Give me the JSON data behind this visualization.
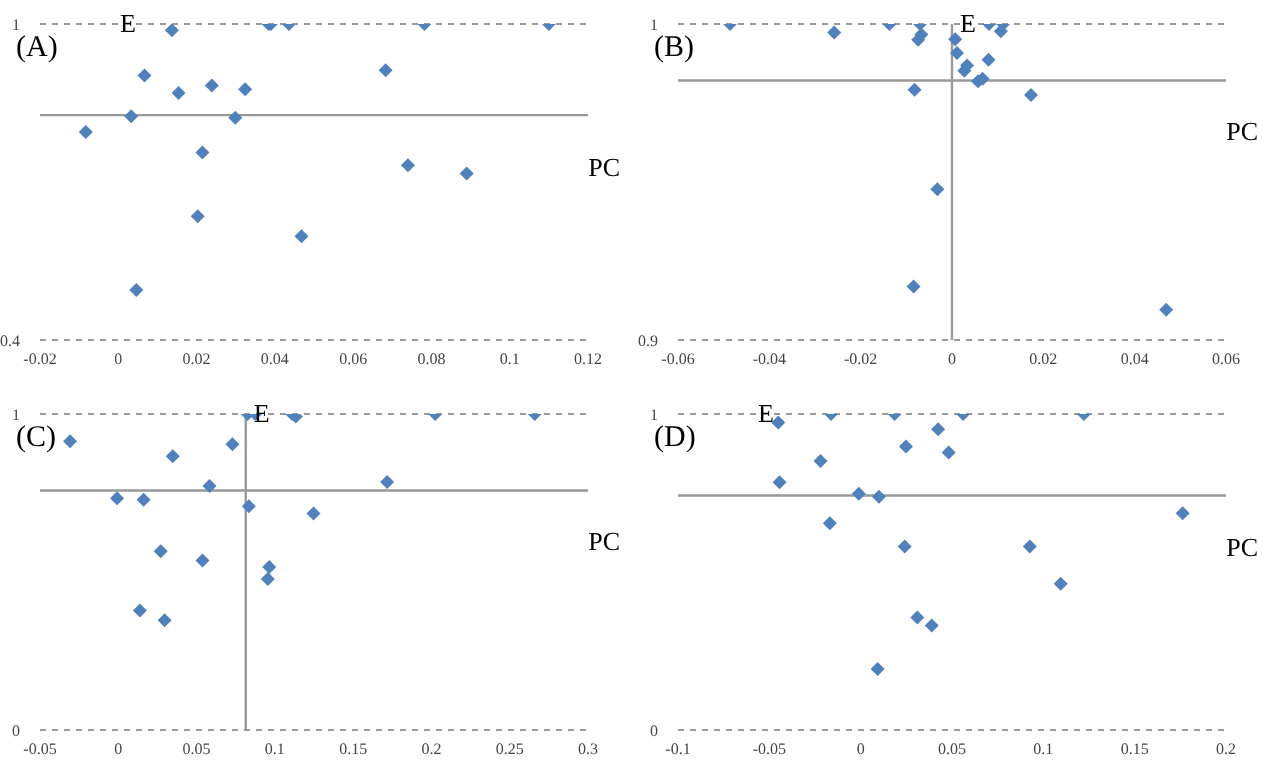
{
  "chart_data": [
    {
      "type": "scatter",
      "title": "(A)",
      "xlabel": "PC",
      "ylabel": "E",
      "color": "#4f81bd",
      "marker": "diamond",
      "grid": "y",
      "x": [
        0.0137,
        0.0384,
        0.039,
        0.0436,
        0.0782,
        0.11,
        0.0067,
        0.0683,
        0.0154,
        0.0239,
        0.0324,
        0.0033,
        0.0299,
        -0.0083,
        0.0215,
        0.074,
        0.089,
        0.0203,
        0.0468,
        0.0046
      ],
      "values": [
        0.988,
        1,
        1,
        1,
        1,
        1,
        0.902,
        0.912,
        0.869,
        0.883,
        0.876,
        0.825,
        0.822,
        0.795,
        0.756,
        0.732,
        0.716,
        0.635,
        0.597,
        0.495
      ],
      "xlim": [
        -0.02,
        0.12
      ],
      "xticks": [
        -0.02,
        0,
        0.02,
        0.04,
        0.06,
        0.08,
        0.1,
        0.12
      ],
      "ylim": [
        0.4,
        1
      ],
      "yticks": [
        0.4,
        1
      ],
      "ref_lines": [
        {
          "axis": "y",
          "value": 0.827
        }
      ]
    },
    {
      "type": "scatter",
      "title": "(B)",
      "xlabel": "PC",
      "ylabel": "E",
      "color": "#4f81bd",
      "marker": "diamond",
      "grid": "y",
      "x": [
        -0.0486,
        -0.0258,
        -0.0137,
        -0.007,
        -0.0067,
        -0.0074,
        0.0007,
        0.0081,
        0.0112,
        0.0107,
        0.0011,
        0.008,
        0.0033,
        0.0027,
        0.0067,
        0.0057,
        -0.0082,
        0.0173,
        -0.0032,
        -0.0084,
        0.0469
      ],
      "values": [
        1,
        0.9973,
        1,
        1,
        0.9967,
        0.995,
        0.9952,
        1,
        1,
        0.9977,
        0.9908,
        0.9887,
        0.9869,
        0.9852,
        0.9827,
        0.9819,
        0.9792,
        0.9775,
        0.9477,
        0.9169,
        0.9096
      ],
      "xlim": [
        -0.06,
        0.06
      ],
      "xticks": [
        -0.06,
        -0.04,
        -0.02,
        0,
        0.02,
        0.04,
        0.06
      ],
      "ylim": [
        0.9,
        1
      ],
      "yticks": [
        0.9,
        1
      ],
      "ref_lines": [
        {
          "axis": "y",
          "value": 0.9821
        },
        {
          "axis": "x",
          "value": 0
        }
      ]
    },
    {
      "type": "scatter",
      "title": "(C)",
      "xlabel": "PC",
      "ylabel": "E",
      "color": "#4f81bd",
      "marker": "diamond",
      "grid": "y",
      "x": [
        -0.0308,
        0.0826,
        0.0874,
        0.111,
        0.1134,
        0.2024,
        0.266,
        0.0729,
        0.0348,
        0.0583,
        0.1717,
        -0.0008,
        0.0162,
        0.0834,
        0.1247,
        0.0271,
        0.0538,
        0.0964,
        0.0955,
        0.0138,
        0.0296
      ],
      "values": [
        0.914,
        1,
        1,
        1,
        0.992,
        1,
        1,
        0.904,
        0.866,
        0.772,
        0.785,
        0.733,
        0.729,
        0.708,
        0.685,
        0.566,
        0.536,
        0.516,
        0.478,
        0.378,
        0.347
      ],
      "xlim": [
        -0.05,
        0.3
      ],
      "xticks": [
        -0.05,
        0,
        0.05,
        0.1,
        0.15,
        0.2,
        0.25,
        0.3
      ],
      "ylim": [
        0,
        1
      ],
      "yticks": [
        0,
        1
      ],
      "ref_lines": [
        {
          "axis": "y",
          "value": 0.758
        },
        {
          "axis": "x",
          "value": 0.0814
        }
      ]
    },
    {
      "type": "scatter",
      "title": "(D)",
      "xlabel": "PC",
      "ylabel": "E",
      "color": "#4f81bd",
      "marker": "diamond",
      "grid": "y",
      "x": [
        -0.0451,
        -0.0162,
        0.0186,
        0.0561,
        0.1222,
        0.0424,
        0.0248,
        0.0482,
        -0.022,
        -0.0444,
        -0.001,
        0.01,
        -0.0169,
        0.1763,
        0.0241,
        0.0926,
        0.1095,
        0.031,
        0.0389,
        0.0093
      ],
      "values": [
        0.973,
        1,
        1,
        1,
        1,
        0.952,
        0.897,
        0.878,
        0.851,
        0.784,
        0.748,
        0.738,
        0.654,
        0.686,
        0.581,
        0.581,
        0.463,
        0.356,
        0.331,
        0.193
      ],
      "xlim": [
        -0.1,
        0.2
      ],
      "xticks": [
        -0.1,
        -0.05,
        0,
        0.05,
        0.1,
        0.15,
        0.2
      ],
      "ylim": [
        0,
        1
      ],
      "yticks": [
        0,
        1
      ],
      "ref_lines": [
        {
          "axis": "y",
          "value": 0.742
        }
      ]
    }
  ]
}
